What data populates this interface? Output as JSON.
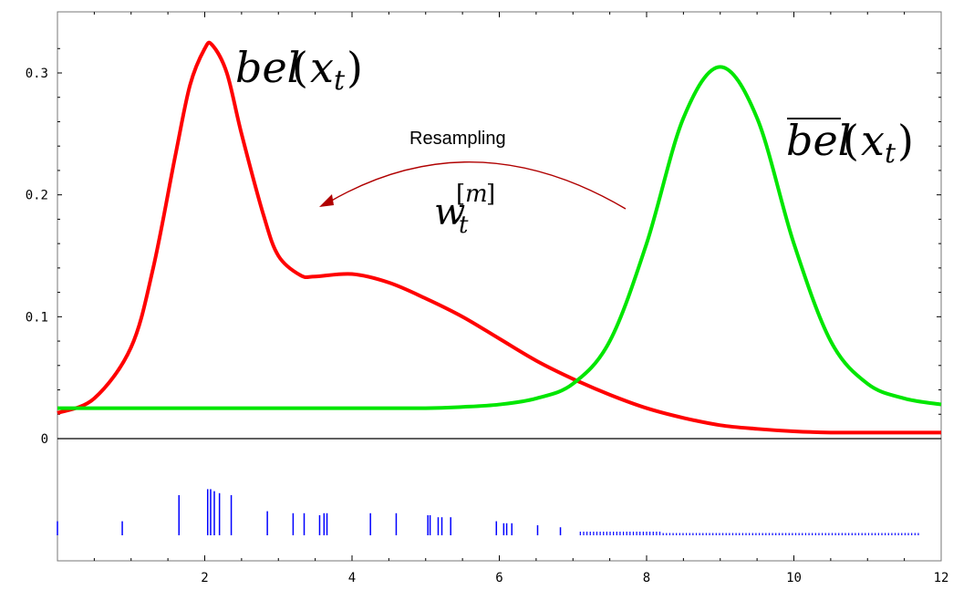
{
  "chart_data": {
    "type": "line",
    "title": "",
    "xlabel": "",
    "ylabel": "",
    "xlim": [
      0,
      12
    ],
    "ylim": [
      0,
      0.34
    ],
    "xticks": [
      2,
      4,
      6,
      8,
      10,
      12
    ],
    "yticks": [
      0,
      0.1,
      0.2,
      0.3
    ],
    "xtick_labels": [
      "2",
      "4",
      "6",
      "8",
      "10",
      "12"
    ],
    "ytick_labels": [
      "0",
      "0.1",
      "0.2",
      "0.3"
    ],
    "grid": false,
    "series": [
      {
        "name": "bel(x_t)",
        "color": "#ff0000",
        "x": [
          0.0,
          0.5,
          1.0,
          1.3,
          1.6,
          1.8,
          2.0,
          2.1,
          2.3,
          2.5,
          2.8,
          3.0,
          3.3,
          3.5,
          4.0,
          4.5,
          5.0,
          5.5,
          6.0,
          6.5,
          7.0,
          7.5,
          8.0,
          8.5,
          9.0,
          9.5,
          10.0,
          10.5,
          11.0,
          12.0
        ],
        "values": [
          0.021,
          0.033,
          0.075,
          0.14,
          0.232,
          0.29,
          0.32,
          0.323,
          0.3,
          0.25,
          0.183,
          0.15,
          0.134,
          0.133,
          0.135,
          0.128,
          0.115,
          0.1,
          0.082,
          0.064,
          0.049,
          0.036,
          0.025,
          0.017,
          0.011,
          0.008,
          0.006,
          0.005,
          0.005,
          0.005
        ]
      },
      {
        "name": "bel-bar(x_t)",
        "color": "#00e600",
        "x": [
          0.0,
          1.0,
          2.0,
          3.0,
          4.0,
          5.0,
          5.5,
          6.0,
          6.5,
          7.0,
          7.5,
          8.0,
          8.5,
          9.0,
          9.5,
          10.0,
          10.5,
          11.0,
          11.5,
          12.0
        ],
        "values": [
          0.025,
          0.025,
          0.025,
          0.025,
          0.025,
          0.025,
          0.026,
          0.028,
          0.033,
          0.045,
          0.08,
          0.16,
          0.263,
          0.305,
          0.263,
          0.16,
          0.08,
          0.045,
          0.033,
          0.028
        ]
      }
    ],
    "particles": {
      "color": "#0000ff",
      "x": [
        0.0,
        0.88,
        1.65,
        2.04,
        2.08,
        2.13,
        2.2,
        2.36,
        2.85,
        3.2,
        3.35,
        3.56,
        3.62,
        3.66,
        4.25,
        4.6,
        5.03,
        5.06,
        5.17,
        5.22,
        5.34,
        5.96,
        6.06,
        6.1,
        6.17,
        6.52,
        6.83
      ],
      "heights": [
        0.35,
        0.35,
        1.0,
        1.15,
        1.15,
        1.1,
        1.05,
        1.0,
        0.6,
        0.55,
        0.55,
        0.5,
        0.55,
        0.55,
        0.55,
        0.55,
        0.5,
        0.5,
        0.45,
        0.45,
        0.45,
        0.35,
        0.3,
        0.3,
        0.3,
        0.25,
        0.2
      ],
      "dense_from": 7.1,
      "dense_to": 11.7
    },
    "annotations": {
      "bel": "bel",
      "bel_bar": "bel",
      "resampling": "Resampling",
      "weight": "w"
    }
  }
}
